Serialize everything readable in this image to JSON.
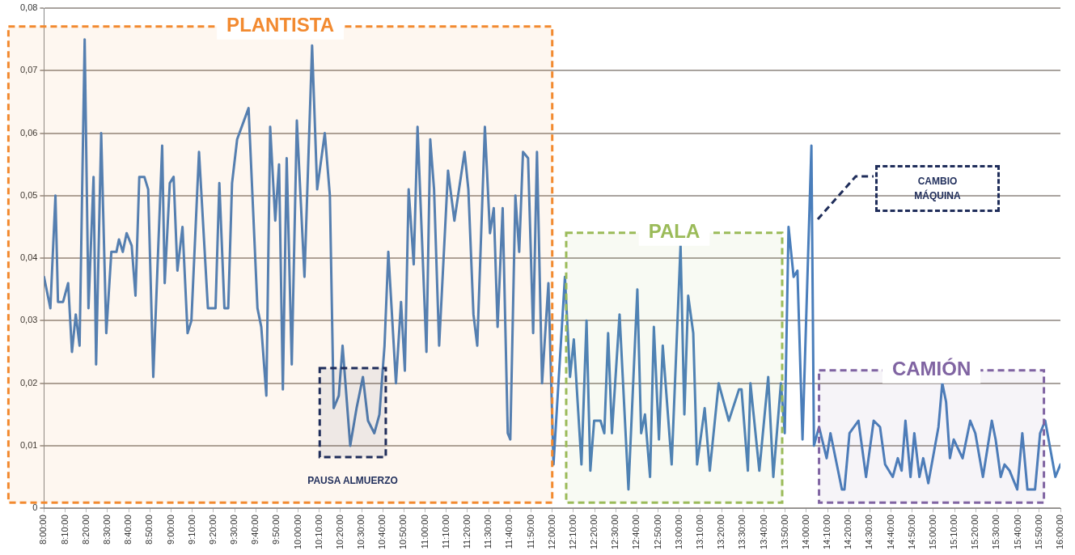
{
  "chart_data": {
    "type": "line",
    "marker": "none",
    "line_style": "solid",
    "grid": "y",
    "legend": false,
    "x": [
      8.0,
      8.05,
      8.09,
      8.11,
      8.15,
      8.19,
      8.22,
      8.25,
      8.28,
      8.32,
      8.35,
      8.39,
      8.41,
      8.45,
      8.49,
      8.53,
      8.57,
      8.59,
      8.62,
      8.65,
      8.69,
      8.72,
      8.75,
      8.79,
      8.82,
      8.86,
      8.93,
      8.95,
      8.99,
      9.02,
      9.05,
      9.09,
      9.13,
      9.16,
      9.22,
      9.29,
      9.35,
      9.38,
      9.42,
      9.45,
      9.48,
      9.52,
      9.61,
      9.68,
      9.71,
      9.75,
      9.78,
      9.82,
      9.85,
      9.88,
      9.91,
      9.95,
      9.99,
      10.05,
      10.11,
      10.15,
      10.21,
      10.25,
      10.28,
      10.32,
      10.35,
      10.41,
      10.46,
      10.51,
      10.55,
      10.6,
      10.64,
      10.68,
      10.71,
      10.77,
      10.81,
      10.84,
      10.87,
      10.91,
      10.94,
      11.01,
      11.04,
      11.07,
      11.11,
      11.18,
      11.23,
      11.31,
      11.34,
      11.38,
      11.41,
      11.47,
      11.51,
      11.54,
      11.57,
      11.61,
      11.65,
      11.67,
      11.71,
      11.74,
      11.77,
      11.81,
      11.85,
      11.88,
      11.92,
      11.97,
      12.01,
      12.1,
      12.14,
      12.17,
      12.23,
      12.27,
      12.3,
      12.33,
      12.38,
      12.41,
      12.44,
      12.47,
      12.53,
      12.6,
      12.67,
      12.7,
      12.73,
      12.77,
      12.8,
      12.84,
      12.87,
      12.94,
      13.01,
      13.04,
      13.07,
      13.11,
      13.14,
      13.2,
      13.24,
      13.31,
      13.39,
      13.47,
      13.49,
      13.54,
      13.56,
      13.63,
      13.7,
      13.74,
      13.8,
      13.83,
      13.86,
      13.9,
      13.93,
      13.97,
      14.04,
      14.06,
      14.1,
      14.16,
      14.19,
      14.28,
      14.3,
      14.34,
      14.41,
      14.47,
      14.53,
      14.58,
      14.62,
      14.68,
      14.72,
      14.75,
      14.78,
      14.82,
      14.85,
      14.89,
      14.92,
      14.96,
      15.04,
      15.07,
      15.1,
      15.13,
      15.16,
      15.23,
      15.29,
      15.33,
      15.39,
      15.46,
      15.49,
      15.53,
      15.56,
      15.6,
      15.66,
      15.7,
      15.74,
      15.8,
      15.84,
      15.88,
      15.96,
      16.0
    ],
    "series": [
      {
        "color": "#4a7ebb",
        "values": [
          0.037,
          0.032,
          0.05,
          0.033,
          0.033,
          0.036,
          0.025,
          0.031,
          0.026,
          0.075,
          0.032,
          0.053,
          0.023,
          0.06,
          0.028,
          0.041,
          0.041,
          0.043,
          0.041,
          0.044,
          0.042,
          0.034,
          0.053,
          0.053,
          0.051,
          0.021,
          0.058,
          0.036,
          0.052,
          0.053,
          0.038,
          0.045,
          0.028,
          0.03,
          0.057,
          0.032,
          0.032,
          0.052,
          0.032,
          0.032,
          0.052,
          0.059,
          0.064,
          0.032,
          0.029,
          0.018,
          0.061,
          0.046,
          0.055,
          0.019,
          0.056,
          0.023,
          0.062,
          0.037,
          0.074,
          0.051,
          0.06,
          0.05,
          0.016,
          0.018,
          0.026,
          0.01,
          0.016,
          0.021,
          0.014,
          0.012,
          0.015,
          0.026,
          0.041,
          0.02,
          0.033,
          0.022,
          0.051,
          0.039,
          0.061,
          0.025,
          0.059,
          0.051,
          0.026,
          0.054,
          0.046,
          0.057,
          0.051,
          0.031,
          0.026,
          0.061,
          0.044,
          0.048,
          0.029,
          0.048,
          0.012,
          0.011,
          0.05,
          0.041,
          0.057,
          0.056,
          0.028,
          0.057,
          0.02,
          0.036,
          0.007,
          0.037,
          0.021,
          0.027,
          0.007,
          0.03,
          0.006,
          0.014,
          0.014,
          0.012,
          0.028,
          0.012,
          0.031,
          0.003,
          0.035,
          0.012,
          0.015,
          0.005,
          0.029,
          0.011,
          0.026,
          0.007,
          0.042,
          0.015,
          0.034,
          0.028,
          0.007,
          0.016,
          0.006,
          0.02,
          0.014,
          0.019,
          0.019,
          0.006,
          0.02,
          0.006,
          0.021,
          0.005,
          0.02,
          0.012,
          0.045,
          0.037,
          0.038,
          0.011,
          0.058,
          0.01,
          0.013,
          0.008,
          0.012,
          0.003,
          0.003,
          0.012,
          0.014,
          0.005,
          0.014,
          0.013,
          0.007,
          0.005,
          0.008,
          0.006,
          0.014,
          0.005,
          0.012,
          0.005,
          0.008,
          0.004,
          0.013,
          0.02,
          0.017,
          0.008,
          0.011,
          0.008,
          0.014,
          0.012,
          0.005,
          0.014,
          0.011,
          0.005,
          0.007,
          0.006,
          0.003,
          0.012,
          0.003,
          0.003,
          0.012,
          0.014,
          0.005,
          0.007
        ]
      }
    ],
    "xlim": [
      8,
      16
    ],
    "xticks": [
      {
        "value": 8,
        "label": "8:00:00"
      },
      {
        "value": 8.1667,
        "label": "8:10:00"
      },
      {
        "value": 8.3333,
        "label": "8:20:00"
      },
      {
        "value": 8.5,
        "label": "8:30:00"
      },
      {
        "value": 8.6667,
        "label": "8:40:00"
      },
      {
        "value": 8.8333,
        "label": "8:50:00"
      },
      {
        "value": 9,
        "label": "9:00:00"
      },
      {
        "value": 9.1667,
        "label": "9:10:00"
      },
      {
        "value": 9.3333,
        "label": "9:20:00"
      },
      {
        "value": 9.5,
        "label": "9:30:00"
      },
      {
        "value": 9.6667,
        "label": "9:40:00"
      },
      {
        "value": 9.8333,
        "label": "9:50:00"
      },
      {
        "value": 10,
        "label": "10:00:00"
      },
      {
        "value": 10.1667,
        "label": "10:10:00"
      },
      {
        "value": 10.3333,
        "label": "10:20:00"
      },
      {
        "value": 10.5,
        "label": "10:30:00"
      },
      {
        "value": 10.6667,
        "label": "10:40:00"
      },
      {
        "value": 10.8333,
        "label": "10:50:00"
      },
      {
        "value": 11,
        "label": "11:00:00"
      },
      {
        "value": 11.1667,
        "label": "11:10:00"
      },
      {
        "value": 11.3333,
        "label": "11:20:00"
      },
      {
        "value": 11.5,
        "label": "11:30:00"
      },
      {
        "value": 11.6667,
        "label": "11:40:00"
      },
      {
        "value": 11.8333,
        "label": "11:50:00"
      },
      {
        "value": 12,
        "label": "12:00:00"
      },
      {
        "value": 12.1667,
        "label": "12:10:00"
      },
      {
        "value": 12.3333,
        "label": "12:20:00"
      },
      {
        "value": 12.5,
        "label": "12:30:00"
      },
      {
        "value": 12.6667,
        "label": "12:40:00"
      },
      {
        "value": 12.8333,
        "label": "12:50:00"
      },
      {
        "value": 13,
        "label": "13:00:00"
      },
      {
        "value": 13.1667,
        "label": "13:10:00"
      },
      {
        "value": 13.3333,
        "label": "13:20:00"
      },
      {
        "value": 13.5,
        "label": "13:30:00"
      },
      {
        "value": 13.6667,
        "label": "13:40:00"
      },
      {
        "value": 13.8333,
        "label": "13:50:00"
      },
      {
        "value": 14,
        "label": "14:00:00"
      },
      {
        "value": 14.1667,
        "label": "14:10:00"
      },
      {
        "value": 14.3333,
        "label": "14:20:00"
      },
      {
        "value": 14.5,
        "label": "14:30:00"
      },
      {
        "value": 14.6667,
        "label": "14:40:00"
      },
      {
        "value": 14.8333,
        "label": "14:50:00"
      },
      {
        "value": 15,
        "label": "15:00:00"
      },
      {
        "value": 15.1667,
        "label": "15:10:00"
      },
      {
        "value": 15.3333,
        "label": "15:20:00"
      },
      {
        "value": 15.5,
        "label": "15:30:00"
      },
      {
        "value": 15.6667,
        "label": "15:40:00"
      },
      {
        "value": 15.8333,
        "label": "15:50:00"
      },
      {
        "value": 16,
        "label": "16:00:00"
      }
    ],
    "ylim": [
      0,
      0.08
    ],
    "yticks": [
      0,
      {
        "value": 0.01,
        "label": "0,01"
      },
      {
        "value": 0.02,
        "label": "0,02"
      },
      {
        "value": 0.03,
        "label": "0,03"
      },
      {
        "value": 0.04,
        "label": "0,04"
      },
      {
        "value": 0.05,
        "label": "0,05"
      },
      {
        "value": 0.06,
        "label": "0,06"
      },
      {
        "value": 0.07,
        "label": "0,07"
      },
      {
        "value": 0.08,
        "label": "0,08"
      }
    ],
    "bands": [
      {
        "axis": "x",
        "from": 8,
        "to": 12,
        "label": "PLANTISTA",
        "color": "#f28a30"
      },
      {
        "axis": "x",
        "from": 10.17,
        "to": 10.69,
        "label": "PAUSA ALMUERZO",
        "color": "#1f2d5a"
      },
      {
        "axis": "x",
        "from": 12.11,
        "to": 13.81,
        "label": "PALA",
        "color": "#9bbb59"
      },
      {
        "axis": "x",
        "from": 14.1,
        "to": 15.87,
        "label": "CAMIÓN",
        "color": "#8064a2"
      }
    ],
    "annotations": [
      "CAMBIO MÁQUINA"
    ]
  }
}
